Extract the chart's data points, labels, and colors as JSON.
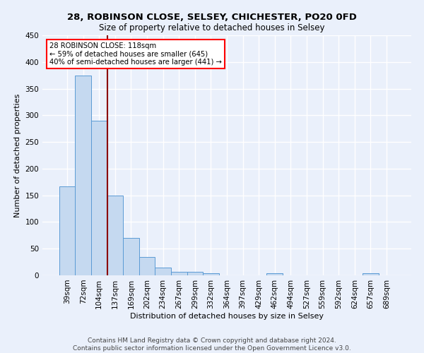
{
  "title1": "28, ROBINSON CLOSE, SELSEY, CHICHESTER, PO20 0FD",
  "title2": "Size of property relative to detached houses in Selsey",
  "xlabel": "Distribution of detached houses by size in Selsey",
  "ylabel": "Number of detached properties",
  "categories": [
    "39sqm",
    "72sqm",
    "104sqm",
    "137sqm",
    "169sqm",
    "202sqm",
    "234sqm",
    "267sqm",
    "299sqm",
    "332sqm",
    "364sqm",
    "397sqm",
    "429sqm",
    "462sqm",
    "494sqm",
    "527sqm",
    "559sqm",
    "592sqm",
    "624sqm",
    "657sqm",
    "689sqm"
  ],
  "values": [
    167,
    375,
    290,
    149,
    70,
    35,
    14,
    7,
    7,
    4,
    0,
    0,
    0,
    4,
    0,
    0,
    0,
    0,
    0,
    4,
    0
  ],
  "bar_color": "#c5d9f0",
  "bar_edge_color": "#5b9bd5",
  "vline_x": 2.5,
  "vline_color": "#8b0000",
  "annotation_text": "28 ROBINSON CLOSE: 118sqm\n← 59% of detached houses are smaller (645)\n40% of semi-detached houses are larger (441) →",
  "annotation_box_color": "white",
  "annotation_box_edge_color": "red",
  "ylim": [
    0,
    450
  ],
  "yticks": [
    0,
    50,
    100,
    150,
    200,
    250,
    300,
    350,
    400,
    450
  ],
  "footer": "Contains HM Land Registry data © Crown copyright and database right 2024.\nContains public sector information licensed under the Open Government Licence v3.0.",
  "bg_color": "#eaf0fb",
  "plot_bg_color": "#eaf0fb",
  "grid_color": "white",
  "title1_fontsize": 9.5,
  "title2_fontsize": 8.5,
  "axis_label_fontsize": 8,
  "tick_fontsize": 7.5,
  "footer_fontsize": 6.5
}
